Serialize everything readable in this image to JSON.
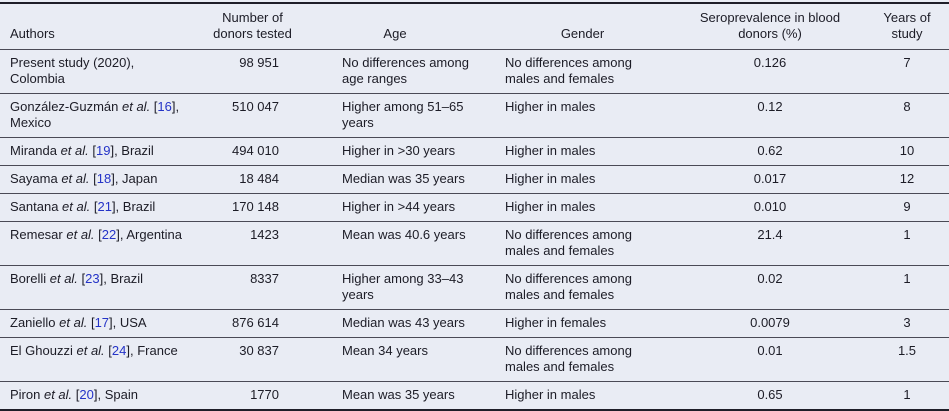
{
  "colors": {
    "background": "#e9ecf4",
    "border_strong": "#1e1e28",
    "border_light": "#4a4a55",
    "text": "#1c1c26",
    "citation_link": "#2433c7"
  },
  "table": {
    "columns": [
      {
        "id": "authors",
        "label": "Authors"
      },
      {
        "id": "donors_tested",
        "label": "Number of donors tested"
      },
      {
        "id": "age",
        "label": "Age"
      },
      {
        "id": "gender",
        "label": "Gender"
      },
      {
        "id": "seroprevalence",
        "label": "Seroprevalence in blood donors (%)"
      },
      {
        "id": "years",
        "label": "Years of study"
      }
    ],
    "rows": [
      {
        "authors": {
          "name": "Present study (2020), Colombia",
          "etal": false,
          "ref": "",
          "suffix": ""
        },
        "donors_tested": "98 951",
        "age": "No differences among age ranges",
        "gender": "No differences among males and females",
        "seroprevalence": "0.126",
        "years": "7"
      },
      {
        "authors": {
          "name": "González-Guzmán",
          "etal": true,
          "ref": "16",
          "suffix": ", Mexico"
        },
        "donors_tested": "510 047",
        "age": "Higher among 51–65 years",
        "gender": "Higher in males",
        "seroprevalence": "0.12",
        "years": "8"
      },
      {
        "authors": {
          "name": "Miranda",
          "etal": true,
          "ref": "19",
          "suffix": ", Brazil"
        },
        "donors_tested": "494 010",
        "age": "Higher in >30 years",
        "gender": "Higher in males",
        "seroprevalence": "0.62",
        "years": "10"
      },
      {
        "authors": {
          "name": "Sayama",
          "etal": true,
          "ref": "18",
          "suffix": ", Japan"
        },
        "donors_tested": "18 484",
        "age": "Median was 35 years",
        "gender": "Higher in males",
        "seroprevalence": "0.017",
        "years": "12"
      },
      {
        "authors": {
          "name": "Santana",
          "etal": true,
          "ref": "21",
          "suffix": ", Brazil"
        },
        "donors_tested": "170 148",
        "age": "Higher in >44 years",
        "gender": "Higher in males",
        "seroprevalence": "0.010",
        "years": "9"
      },
      {
        "authors": {
          "name": "Remesar",
          "etal": true,
          "ref": "22",
          "suffix": ", Argentina"
        },
        "donors_tested": "1423",
        "age": "Mean was 40.6 years",
        "gender": "No differences among males and females",
        "seroprevalence": "21.4",
        "years": "1"
      },
      {
        "authors": {
          "name": "Borelli",
          "etal": true,
          "ref": "23",
          "suffix": ", Brazil"
        },
        "donors_tested": "8337",
        "age": "Higher among 33–43 years",
        "gender": "No differences among males and females",
        "seroprevalence": "0.02",
        "years": "1"
      },
      {
        "authors": {
          "name": "Zaniello",
          "etal": true,
          "ref": "17",
          "suffix": ", USA"
        },
        "donors_tested": "876 614",
        "age": "Median was 43 years",
        "gender": "Higher in females",
        "seroprevalence": "0.0079",
        "years": "3"
      },
      {
        "authors": {
          "name": "El Ghouzzi",
          "etal": true,
          "ref": "24",
          "suffix": ", France"
        },
        "donors_tested": "30 837",
        "age": "Mean 34 years",
        "gender": "No differences among males and females",
        "seroprevalence": "0.01",
        "years": "1.5"
      },
      {
        "authors": {
          "name": "Piron",
          "etal": true,
          "ref": "20",
          "suffix": ", Spain"
        },
        "donors_tested": "1770",
        "age": "Mean was 35 years",
        "gender": "Higher in males",
        "seroprevalence": "0.65",
        "years": "1"
      }
    ]
  }
}
